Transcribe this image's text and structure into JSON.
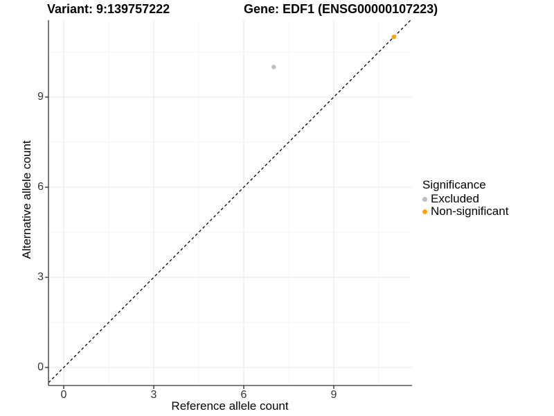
{
  "titles": {
    "variant": "Variant: 9:139757222",
    "gene": "Gene: EDF1 (ENSG00000107223)"
  },
  "axes": {
    "x": {
      "label": "Reference allele count",
      "ticks": [
        "0",
        "3",
        "6",
        "9"
      ]
    },
    "y": {
      "label": "Alternative allele count",
      "ticks": [
        "0",
        "3",
        "6",
        "9"
      ]
    }
  },
  "legend": {
    "title": "Significance",
    "items": [
      {
        "label": "Excluded",
        "color": "#bebebe"
      },
      {
        "label": "Non-significant",
        "color": "#ffa500"
      }
    ]
  },
  "chart_data": {
    "type": "scatter",
    "title": "Variant: 9:139757222  /  Gene: EDF1 (ENSG00000107223)",
    "xlabel": "Reference allele count",
    "ylabel": "Alternative allele count",
    "xlim": [
      -0.6,
      11.6
    ],
    "ylim": [
      -0.6,
      11.6
    ],
    "x_breaks": [
      0,
      3,
      6,
      9
    ],
    "y_breaks": [
      0,
      3,
      6,
      9
    ],
    "grid": "major+minor",
    "legend_position": "right",
    "series": [
      {
        "name": "Excluded",
        "color": "#bebebe",
        "points": [
          {
            "x": 7,
            "y": 10
          }
        ]
      },
      {
        "name": "Non-significant",
        "color": "#ffa500",
        "points": [
          {
            "x": 11,
            "y": 11
          }
        ]
      }
    ],
    "reference_line": {
      "type": "identity",
      "slope": 1,
      "intercept": 0,
      "linetype": "dashed",
      "color": "#000000"
    },
    "colors": {
      "major_grid": "#e8e8e8",
      "minor_grid": "#f3f3f3",
      "axis_line": "#555555",
      "tick_mark": "#333333"
    }
  }
}
